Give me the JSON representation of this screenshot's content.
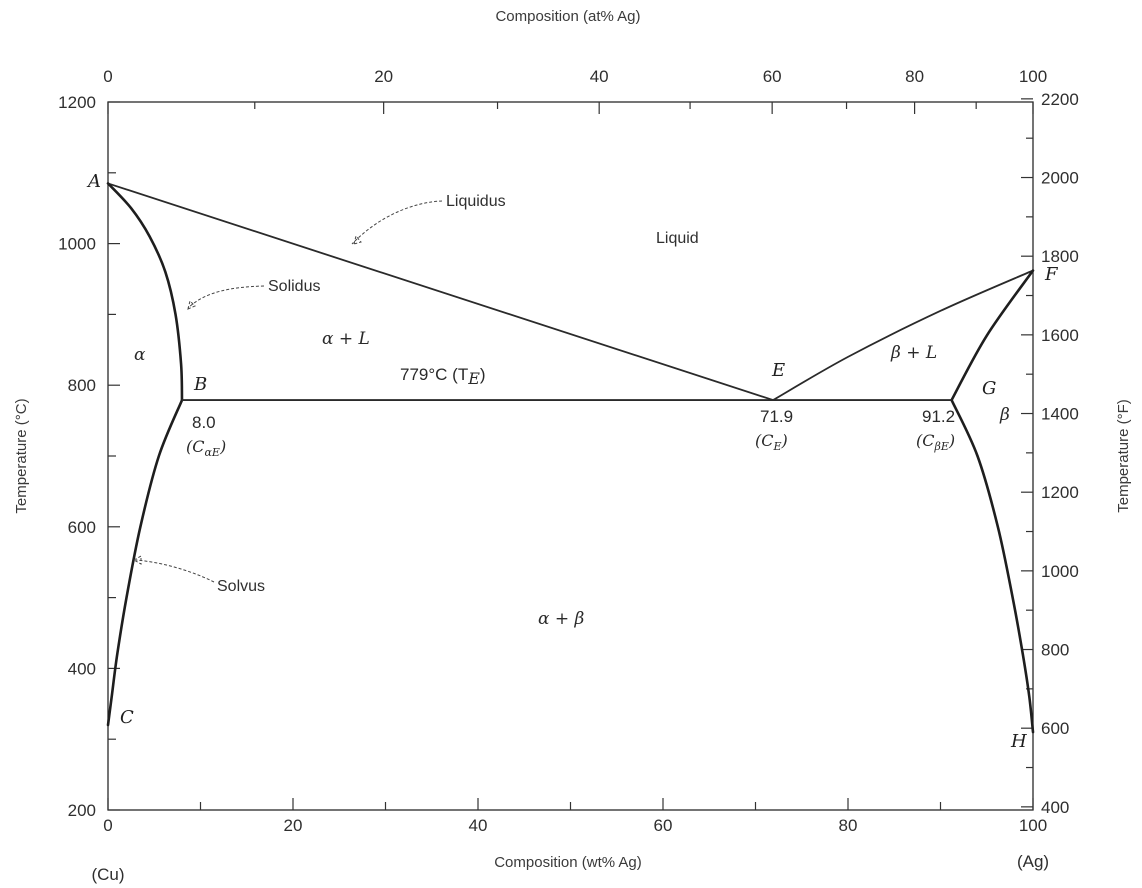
{
  "chart_data": {
    "type": "phase-diagram",
    "title": "",
    "xlabel": "Composition (wt% Ag)",
    "x2label": "Composition (at% Ag)",
    "ylabel": "Temperature (°C)",
    "y2label": "Temperature (°F)",
    "xlim": [
      0,
      100
    ],
    "ylim": [
      200,
      1200
    ],
    "x_ticks": [
      "0",
      "20",
      "40",
      "60",
      "80",
      "100"
    ],
    "x2_ticks": [
      {
        "at": 0,
        "wt": 0,
        "label": "0"
      },
      {
        "at": 20,
        "wt": 29.8,
        "label": "20"
      },
      {
        "at": 40,
        "wt": 53.1,
        "label": "40"
      },
      {
        "at": 60,
        "wt": 71.8,
        "label": "60"
      },
      {
        "at": 80,
        "wt": 87.2,
        "label": "80"
      },
      {
        "at": 100,
        "wt": 100,
        "label": "100"
      }
    ],
    "y_ticks": [
      "200",
      "400",
      "600",
      "800",
      "1000",
      "1200"
    ],
    "y2_ticks": [
      "400",
      "600",
      "800",
      "1000",
      "1200",
      "1400",
      "1600",
      "1800",
      "2000",
      "2200"
    ],
    "x_end_labels": {
      "left": "(Cu)",
      "right": "(Ag)"
    },
    "eutectic_temperature_label": "779°C (T",
    "eutectic_temperature_sub": "E",
    "eutectic_temperature_close": ")",
    "points": [
      {
        "name": "A",
        "wt": 0,
        "temp": 1085
      },
      {
        "name": "B",
        "wt": 8.0,
        "temp": 779
      },
      {
        "name": "C",
        "wt": 0,
        "temp": 320
      },
      {
        "name": "E",
        "wt": 71.9,
        "temp": 779
      },
      {
        "name": "F",
        "wt": 100,
        "temp": 962
      },
      {
        "name": "G",
        "wt": 91.2,
        "temp": 779
      },
      {
        "name": "H",
        "wt": 100,
        "temp": 310
      }
    ],
    "composition_labels": [
      {
        "value": "8.0",
        "symbol": "C",
        "sub": "αE"
      },
      {
        "value": "71.9",
        "symbol": "C",
        "sub": "E"
      },
      {
        "value": "91.2",
        "symbol": "C",
        "sub": "βE"
      }
    ],
    "regions": [
      {
        "label": "Liquid"
      },
      {
        "label": "α"
      },
      {
        "label": "α + L"
      },
      {
        "label": "β + L"
      },
      {
        "label": "β"
      },
      {
        "label": "α + β"
      }
    ],
    "curve_labels": [
      "Liquidus",
      "Solidus",
      "Solvus"
    ],
    "series": [
      {
        "name": "Liquidus",
        "points": [
          [
            0,
            1085
          ],
          [
            71.9,
            779
          ]
        ]
      },
      {
        "name": "Liquidus",
        "points": [
          [
            71.9,
            779
          ],
          [
            80,
            840
          ],
          [
            90,
            905
          ],
          [
            100,
            962
          ]
        ]
      },
      {
        "name": "Solidus",
        "points": [
          [
            0,
            1085
          ],
          [
            2.5,
            1050
          ],
          [
            4.5,
            1010
          ],
          [
            6.2,
            960
          ],
          [
            7.3,
            900
          ],
          [
            7.9,
            830
          ],
          [
            8.0,
            779
          ]
        ]
      },
      {
        "name": "Solidus",
        "points": [
          [
            100,
            962
          ],
          [
            95,
            870
          ],
          [
            91.2,
            779
          ]
        ]
      },
      {
        "name": "Solvus",
        "points": [
          [
            8.0,
            779
          ],
          [
            5.5,
            700
          ],
          [
            3.5,
            600
          ],
          [
            2.0,
            500
          ],
          [
            1.0,
            420
          ],
          [
            0.4,
            360
          ],
          [
            0,
            320
          ]
        ]
      },
      {
        "name": "Solvus",
        "points": [
          [
            91.2,
            779
          ],
          [
            94,
            700
          ],
          [
            96.2,
            600
          ],
          [
            97.8,
            500
          ],
          [
            98.9,
            420
          ],
          [
            99.6,
            360
          ],
          [
            100,
            310
          ]
        ]
      },
      {
        "name": "Eutectic isotherm",
        "points": [
          [
            8.0,
            779
          ],
          [
            91.2,
            779
          ]
        ]
      }
    ]
  }
}
